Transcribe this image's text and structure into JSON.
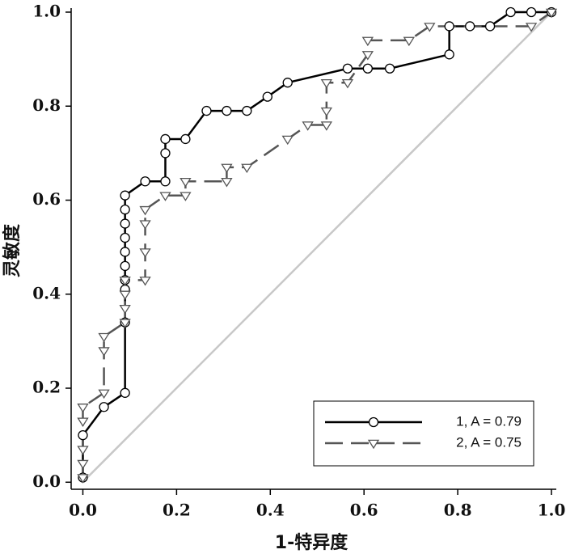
{
  "chart_data": {
    "type": "line",
    "x_label": "1-特异度",
    "y_label": "灵敏度",
    "xlim": [
      -0.025,
      1.0
    ],
    "ylim": [
      -0.015,
      1.0
    ],
    "xticks": [
      {
        "value": 0,
        "label": "0.0"
      },
      0.2,
      0.4,
      0.6,
      0.8,
      {
        "value": 1,
        "label": "1.0"
      }
    ],
    "yticks": [
      {
        "value": 0,
        "label": "0.0"
      },
      0.2,
      0.4,
      0.6,
      0.8,
      {
        "value": 1,
        "label": "1.0"
      }
    ],
    "legend_position": "lower right",
    "series": [
      {
        "name": "1, A = 0.79",
        "color": "#000000",
        "marker": "circle",
        "dash": "solid",
        "x": [
          0,
          0,
          0.045,
          0.09,
          0.09,
          0.09,
          0.09,
          0.09,
          0.09,
          0.09,
          0.09,
          0.09,
          0.09,
          0.133,
          0.176,
          0.176,
          0.176,
          0.219,
          0.264,
          0.307,
          0.35,
          0.394,
          0.437,
          0.565,
          0.608,
          0.655,
          0.782,
          0.782,
          0.826,
          0.869,
          0.913,
          0.957,
          1.0
        ],
        "values": [
          0.01,
          0.1,
          0.16,
          0.19,
          0.34,
          0.41,
          0.43,
          0.46,
          0.49,
          0.52,
          0.55,
          0.58,
          0.61,
          0.64,
          0.64,
          0.7,
          0.73,
          0.73,
          0.79,
          0.79,
          0.79,
          0.82,
          0.85,
          0.88,
          0.88,
          0.88,
          0.91,
          0.97,
          0.97,
          0.97,
          1.0,
          1.0,
          1.0
        ]
      },
      {
        "name": "2, A = 0.75",
        "color": "#555555",
        "marker": "triangle",
        "dash": "dashed",
        "x": [
          0,
          0,
          0,
          0,
          0,
          0.045,
          0.045,
          0.045,
          0.09,
          0.09,
          0.09,
          0.09,
          0.133,
          0.133,
          0.133,
          0.133,
          0.176,
          0.219,
          0.219,
          0.307,
          0.307,
          0.35,
          0.437,
          0.48,
          0.52,
          0.52,
          0.52,
          0.565,
          0.608,
          0.608,
          0.696,
          0.74,
          0.957,
          1.0
        ],
        "values": [
          0.01,
          0.04,
          0.07,
          0.13,
          0.16,
          0.19,
          0.28,
          0.31,
          0.34,
          0.37,
          0.4,
          0.43,
          0.43,
          0.49,
          0.55,
          0.58,
          0.61,
          0.61,
          0.64,
          0.64,
          0.67,
          0.67,
          0.73,
          0.76,
          0.76,
          0.79,
          0.85,
          0.85,
          0.91,
          0.94,
          0.94,
          0.97,
          0.97,
          1.0
        ]
      }
    ]
  }
}
